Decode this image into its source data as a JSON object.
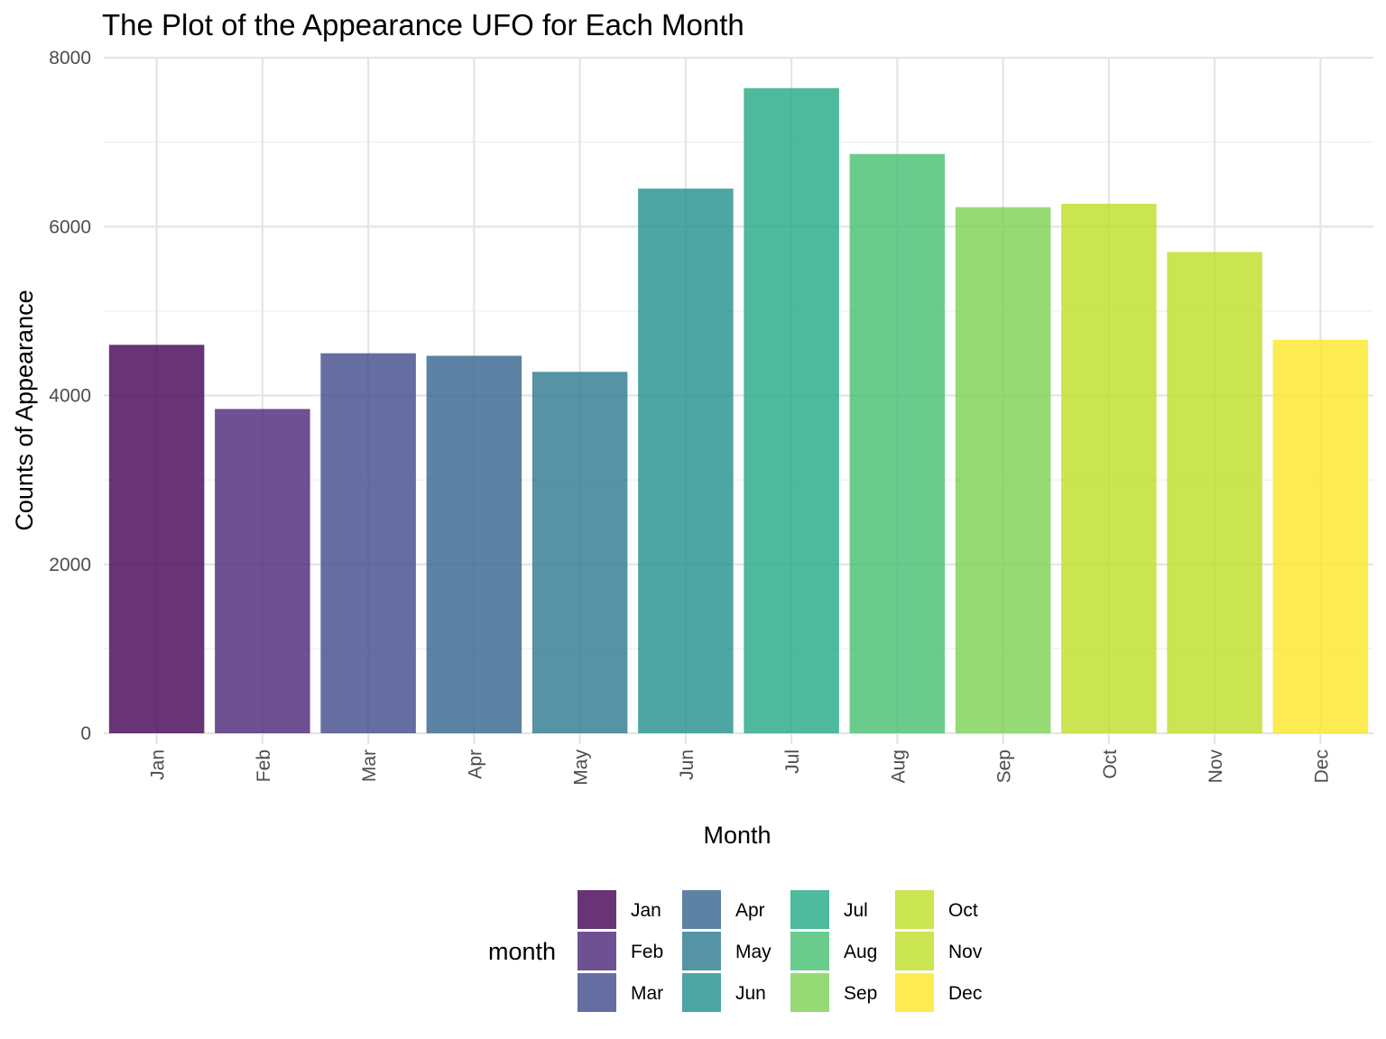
{
  "chart_data": {
    "type": "bar",
    "title": "The Plot of the Appearance UFO for Each Month",
    "xlabel": "Month",
    "ylabel": "Counts of Appearance",
    "categories": [
      "Jan",
      "Feb",
      "Mar",
      "Apr",
      "May",
      "Jun",
      "Jul",
      "Aug",
      "Sep",
      "Oct",
      "Nov",
      "Dec"
    ],
    "values": [
      4600,
      3840,
      4500,
      4470,
      4280,
      6450,
      7640,
      6860,
      6230,
      6270,
      5700,
      4660
    ],
    "ylim": [
      0,
      8000
    ],
    "yticks": [
      "0",
      "2000",
      "4000",
      "6000",
      "8000"
    ],
    "grid": true,
    "colors": [
      "#440154",
      "#482878",
      "#3e4a89",
      "#31688e",
      "#26828e",
      "#1f9e89",
      "#35b779",
      "#6ece58",
      "#b5de2b",
      "#fde725"
    ],
    "bar_colors": [
      "#440154",
      "#482677",
      "#3f4889",
      "#33638d",
      "#2a788e",
      "#21908d",
      "#22a884",
      "#43bf71",
      "#7ad151",
      "#bddf26",
      "#bddf26",
      "#fde725"
    ],
    "legend": {
      "title": "month",
      "position": "bottom",
      "entries": [
        "Jan",
        "Feb",
        "Mar",
        "Apr",
        "May",
        "Jun",
        "Jul",
        "Aug",
        "Sep",
        "Oct",
        "Nov",
        "Dec"
      ]
    }
  }
}
